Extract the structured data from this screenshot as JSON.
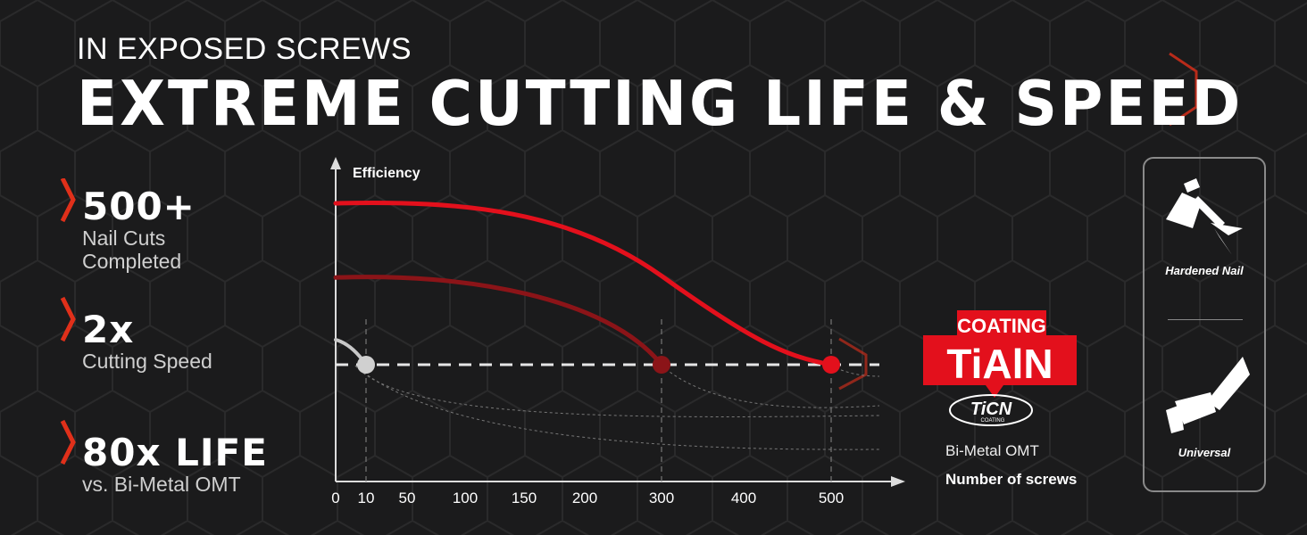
{
  "header": {
    "subtitle": "IN EXPOSED SCREWS",
    "title": "EXTREME CUTTING LIFE & SPEED"
  },
  "stats": [
    {
      "value": "500+",
      "line1": "Nail Cuts",
      "line2": "Completed"
    },
    {
      "value": "2x",
      "line1": "Cutting Speed",
      "line2": ""
    },
    {
      "value": "80x LIFE",
      "line1": "vs. Bi-Metal OMT",
      "line2": ""
    }
  ],
  "badge": {
    "coating_label": "COATING",
    "tiain_label": "TiAlN",
    "ticn_label": "TiCN",
    "ticn_sub": "COATING"
  },
  "legend": {
    "bimetal_label": "Bi-Metal OMT",
    "xaxis_label": "Number of screws"
  },
  "panel": {
    "top_label": "Hardened Nail",
    "bottom_label": "Universal"
  },
  "colors": {
    "accent_red": "#e3101c",
    "dark_red": "#8b1418",
    "bimetal_gray": "#c8c8c8"
  },
  "chart_data": {
    "type": "line",
    "ylabel": "Efficiency",
    "xlabel": "Number of screws",
    "x_ticks": [
      0,
      10,
      50,
      100,
      150,
      200,
      300,
      400,
      500
    ],
    "xlim": [
      0,
      600
    ],
    "series": [
      {
        "name": "TiAlN",
        "color": "#e3101c",
        "x": [
          0,
          100,
          200,
          300,
          400,
          500
        ],
        "y": [
          1.0,
          0.99,
          0.93,
          0.78,
          0.43,
          0.0
        ]
      },
      {
        "name": "TiCN",
        "color": "#8b1418",
        "x": [
          0,
          100,
          200,
          300
        ],
        "y": [
          0.98,
          0.93,
          0.72,
          0.0
        ]
      },
      {
        "name": "Bi-Metal OMT",
        "color": "#c8c8c8",
        "x": [
          0,
          10
        ],
        "y": [
          0.3,
          0.0
        ]
      }
    ],
    "endpoints": [
      10,
      300,
      500
    ]
  },
  "icons": {
    "nail": "nail-icon",
    "tool": "multitool-icon",
    "chevron": "chevron-icon"
  }
}
